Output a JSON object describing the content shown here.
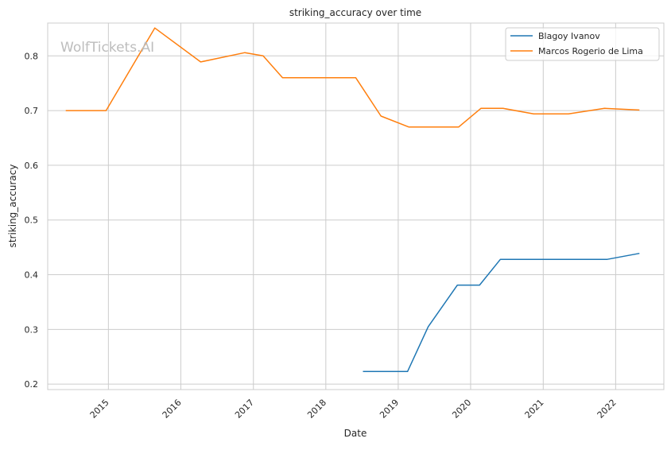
{
  "watermark": "WolfTickets.AI",
  "chart_data": {
    "type": "line",
    "title": "striking_accuracy over time",
    "xlabel": "Date",
    "ylabel": "striking_accuracy",
    "x_is_date": true,
    "xlim": [
      "2014-03-01",
      "2022-09-01"
    ],
    "ylim": [
      0.19,
      0.86
    ],
    "x_ticks": [
      "2015",
      "2016",
      "2017",
      "2018",
      "2019",
      "2020",
      "2021",
      "2022"
    ],
    "y_ticks": [
      "0.2",
      "0.3",
      "0.4",
      "0.5",
      "0.6",
      "0.7",
      "0.8"
    ],
    "grid": true,
    "legend_position": "top-right",
    "series": [
      {
        "name": "Blagoy Ivanov",
        "color": "#1f77b4",
        "points": [
          {
            "x": "2018-07-07",
            "y": 0.223
          },
          {
            "x": "2019-02-17",
            "y": 0.223
          },
          {
            "x": "2019-06-01",
            "y": 0.305
          },
          {
            "x": "2019-10-26",
            "y": 0.381
          },
          {
            "x": "2020-02-15",
            "y": 0.381
          },
          {
            "x": "2020-05-30",
            "y": 0.428
          },
          {
            "x": "2021-11-20",
            "y": 0.428
          },
          {
            "x": "2022-05-01",
            "y": 0.439
          }
        ]
      },
      {
        "name": "Marcos Rogerio de Lima",
        "color": "#ff7f0e",
        "points": [
          {
            "x": "2014-05-31",
            "y": 0.7
          },
          {
            "x": "2014-12-20",
            "y": 0.7
          },
          {
            "x": "2015-08-23",
            "y": 0.851
          },
          {
            "x": "2016-04-10",
            "y": 0.789
          },
          {
            "x": "2016-11-19",
            "y": 0.806
          },
          {
            "x": "2017-02-19",
            "y": 0.8
          },
          {
            "x": "2017-05-28",
            "y": 0.76
          },
          {
            "x": "2018-06-01",
            "y": 0.76
          },
          {
            "x": "2018-10-06",
            "y": 0.69
          },
          {
            "x": "2019-02-23",
            "y": 0.67
          },
          {
            "x": "2019-11-02",
            "y": 0.67
          },
          {
            "x": "2020-02-22",
            "y": 0.704
          },
          {
            "x": "2020-06-13",
            "y": 0.704
          },
          {
            "x": "2020-11-14",
            "y": 0.694
          },
          {
            "x": "2021-05-08",
            "y": 0.694
          },
          {
            "x": "2021-11-06",
            "y": 0.704
          },
          {
            "x": "2022-05-01",
            "y": 0.701
          }
        ]
      }
    ]
  }
}
